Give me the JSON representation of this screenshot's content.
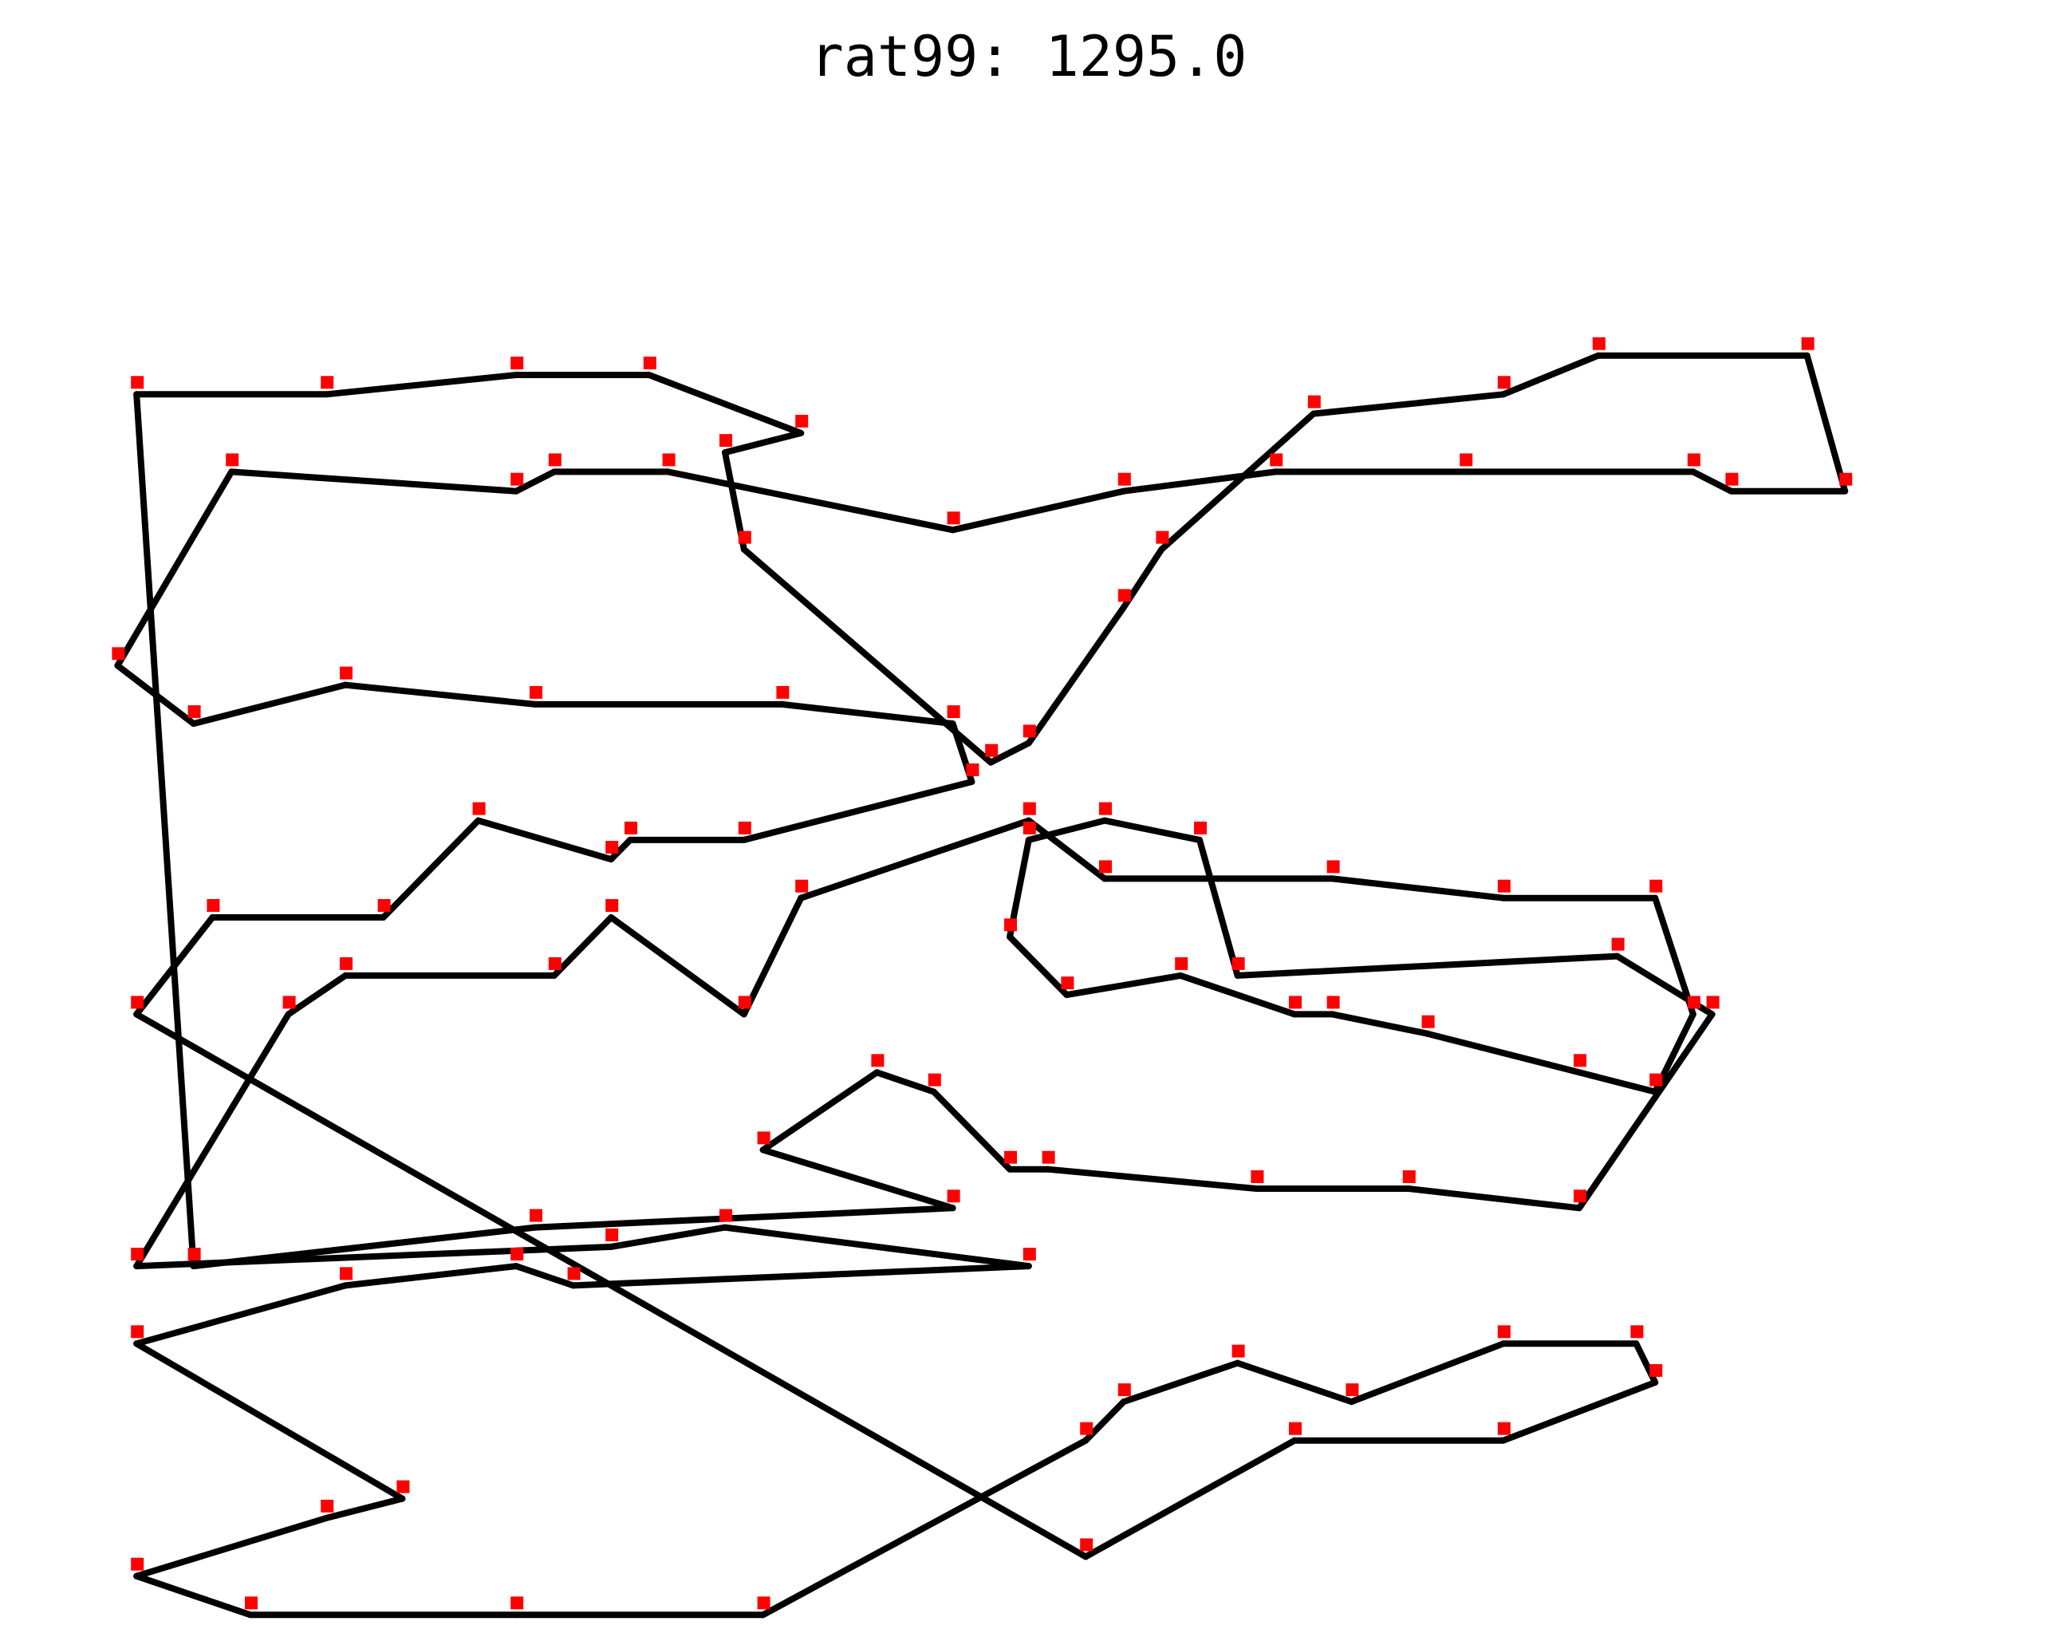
{
  "chart_data": {
    "type": "line",
    "title": "rat99: 1295.0",
    "xlabel": "",
    "ylabel": "",
    "grid": false,
    "axes_visible": false,
    "line_color": "#000000",
    "marker_color": "#ff0000",
    "xlim": [
      0,
      95
    ],
    "ylim": [
      0,
      70
    ],
    "tour": [
      [
        4,
        40
      ],
      [
        8,
        35
      ],
      [
        17,
        35
      ],
      [
        22,
        30
      ],
      [
        29,
        32
      ],
      [
        30,
        31
      ],
      [
        36,
        31
      ],
      [
        48,
        28
      ],
      [
        47,
        25
      ],
      [
        38,
        24
      ],
      [
        25,
        24
      ],
      [
        15,
        23
      ],
      [
        7,
        25
      ],
      [
        3,
        22
      ],
      [
        9,
        12
      ],
      [
        24,
        13
      ],
      [
        26,
        12
      ],
      [
        32,
        12
      ],
      [
        47,
        15
      ],
      [
        56,
        13
      ],
      [
        64,
        12
      ],
      [
        74,
        12
      ],
      [
        86,
        12
      ],
      [
        88,
        13
      ],
      [
        94,
        13
      ],
      [
        92,
        6
      ],
      [
        81,
        6
      ],
      [
        76,
        8
      ],
      [
        66,
        9
      ],
      [
        58,
        16
      ],
      [
        56,
        19
      ],
      [
        51,
        26
      ],
      [
        49,
        27
      ],
      [
        36,
        16
      ],
      [
        35,
        11
      ],
      [
        39,
        10
      ],
      [
        31,
        7
      ],
      [
        24,
        7
      ],
      [
        14,
        8
      ],
      [
        4,
        8
      ],
      [
        7,
        53
      ],
      [
        25,
        51
      ],
      [
        47,
        50
      ],
      [
        37,
        47
      ],
      [
        43,
        43
      ],
      [
        46,
        44
      ],
      [
        50,
        48
      ],
      [
        52,
        48
      ],
      [
        63,
        49
      ],
      [
        71,
        49
      ],
      [
        80,
        50
      ],
      [
        87,
        40
      ],
      [
        82,
        37
      ],
      [
        62,
        38
      ],
      [
        60,
        31
      ],
      [
        55,
        30
      ],
      [
        51,
        31
      ],
      [
        50,
        36
      ],
      [
        53,
        39
      ],
      [
        59,
        38
      ],
      [
        65,
        40
      ],
      [
        67,
        40
      ],
      [
        72,
        41
      ],
      [
        80,
        43
      ],
      [
        84,
        44
      ],
      [
        86,
        40
      ],
      [
        84,
        34
      ],
      [
        76,
        34
      ],
      [
        67,
        33
      ],
      [
        55,
        33
      ],
      [
        51,
        30
      ],
      [
        39,
        34
      ],
      [
        36,
        40
      ],
      [
        29,
        35
      ],
      [
        26,
        38
      ],
      [
        15,
        38
      ],
      [
        12,
        40
      ],
      [
        4,
        53
      ],
      [
        29,
        52
      ],
      [
        35,
        51
      ],
      [
        51,
        53
      ],
      [
        27,
        54
      ],
      [
        24,
        53
      ],
      [
        15,
        54
      ],
      [
        4,
        57
      ],
      [
        18,
        65
      ],
      [
        14,
        66
      ],
      [
        4,
        69
      ],
      [
        10,
        71
      ],
      [
        24,
        71
      ],
      [
        37,
        71
      ],
      [
        54,
        62
      ],
      [
        56,
        60
      ],
      [
        62,
        58
      ],
      [
        68,
        60
      ],
      [
        76,
        57
      ],
      [
        83,
        57
      ],
      [
        84,
        59
      ],
      [
        76,
        62
      ],
      [
        65,
        62
      ],
      [
        54,
        68
      ]
    ]
  }
}
